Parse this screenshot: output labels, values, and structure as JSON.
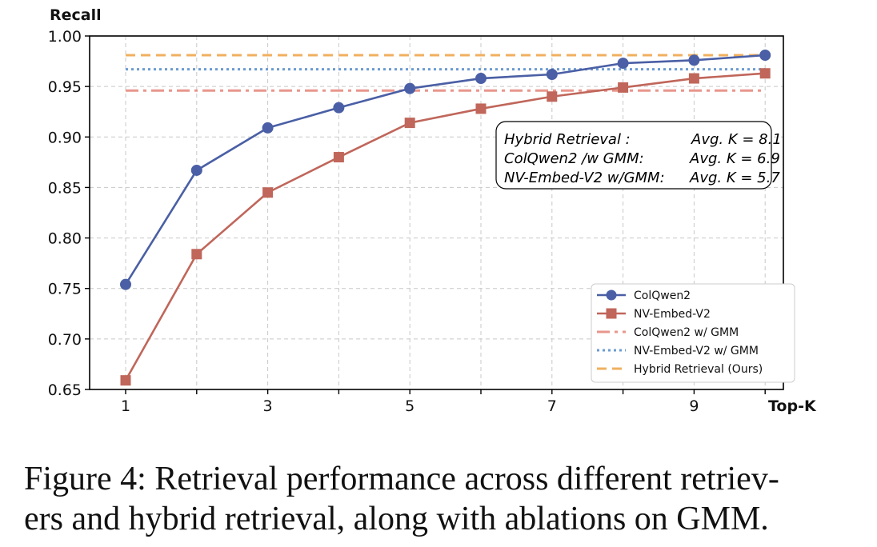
{
  "chart_data": {
    "type": "line",
    "ylabel": "Recall",
    "xlabel": "Top-K",
    "x": [
      1,
      2,
      3,
      4,
      5,
      6,
      7,
      8,
      9,
      10
    ],
    "x_tick_labels": [
      "1",
      "3",
      "5",
      "7",
      "9"
    ],
    "x_tick_label_positions": [
      1,
      3,
      5,
      7,
      9
    ],
    "xlim": [
      0.5,
      10
    ],
    "ylim": [
      0.65,
      1.0
    ],
    "y_ticks": [
      0.65,
      0.7,
      0.75,
      0.8,
      0.85,
      0.9,
      0.95,
      1.0
    ],
    "y_tick_labels": [
      "0.65",
      "0.70",
      "0.75",
      "0.80",
      "0.85",
      "0.90",
      "0.95",
      "1.00"
    ],
    "grid": true,
    "series": [
      {
        "name": "ColQwen2",
        "style": "line-marker",
        "marker": "circle",
        "color": "#4a5fa5",
        "values": [
          0.754,
          0.867,
          0.909,
          0.929,
          0.948,
          0.958,
          0.962,
          0.973,
          0.976,
          0.981
        ]
      },
      {
        "name": "NV-Embed-V2",
        "style": "line-marker",
        "marker": "square",
        "color": "#c0665a",
        "values": [
          0.659,
          0.784,
          0.845,
          0.88,
          0.914,
          0.928,
          0.94,
          0.949,
          0.958,
          0.963
        ]
      },
      {
        "name": "ColQwen2 w/ GMM",
        "style": "dashdot",
        "color": "#e8968c",
        "value": 0.946
      },
      {
        "name": "NV-Embed-V2 w/ GMM",
        "style": "dotted",
        "color": "#6b9bd1",
        "value": 0.967
      },
      {
        "name": "Hybrid Retrieval (Ours)",
        "style": "dashed",
        "color": "#f0b060",
        "value": 0.981
      }
    ],
    "legend_placement": "lower-right",
    "annotation": {
      "rows": [
        {
          "label": "Hybrid Retrieval :",
          "value": "Avg. K = 8.1"
        },
        {
          "label": "ColQwen2 /w GMM:",
          "value": "Avg. K = 6.9"
        },
        {
          "label": "NV-Embed-V2 w/GMM:",
          "value": "Avg. K = 5.7"
        }
      ]
    }
  },
  "caption": {
    "line1": "Figure 4: Retrieval performance across different retriev-",
    "line2": "ers and hybrid retrieval, along with ablations on GMM."
  }
}
